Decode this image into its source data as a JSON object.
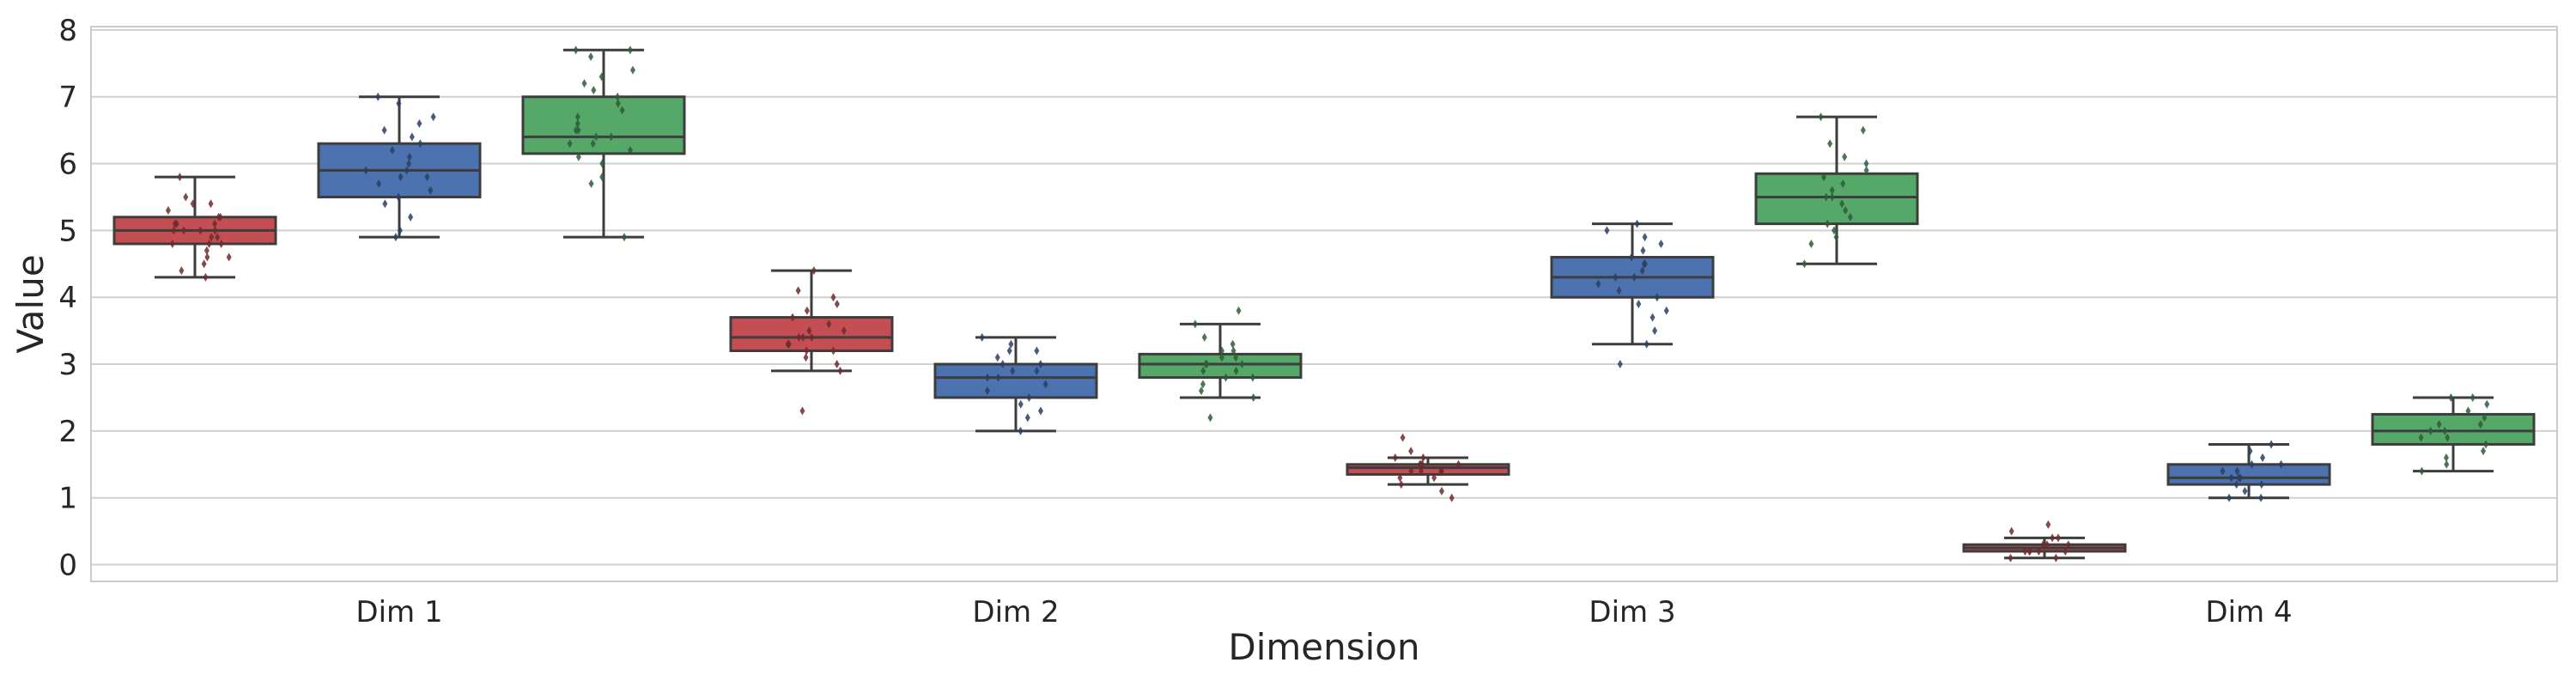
{
  "chart_data": {
    "type": "box",
    "xlabel": "Dimension",
    "ylabel": "Value",
    "categories": [
      "Dim 1",
      "Dim 2",
      "Dim 3",
      "Dim 4"
    ],
    "ylim": [
      -0.25,
      8.05
    ],
    "yticks": [
      "0",
      "1",
      "2",
      "3",
      "4",
      "5",
      "6",
      "7",
      "8"
    ],
    "grid": true,
    "colors": [
      "#c44e52",
      "#4c72b0",
      "#55a868"
    ],
    "series": [
      {
        "color": "#c44e52",
        "boxes": [
          {
            "whisker_low": 4.3,
            "q1": 4.8,
            "median": 5.0,
            "q3": 5.2,
            "whisker_high": 5.8,
            "points": [
              4.3,
              4.4,
              4.5,
              4.6,
              4.6,
              4.7,
              4.8,
              4.8,
              4.8,
              4.9,
              4.9,
              5.0,
              5.0,
              5.0,
              5.0,
              5.1,
              5.1,
              5.1,
              5.2,
              5.2,
              5.3,
              5.4,
              5.4,
              5.5,
              5.8
            ]
          },
          {
            "whisker_low": 2.9,
            "q1": 3.2,
            "median": 3.4,
            "q3": 3.7,
            "whisker_high": 4.4,
            "points": [
              2.3,
              2.9,
              3.0,
              3.1,
              3.2,
              3.2,
              3.3,
              3.3,
              3.4,
              3.4,
              3.4,
              3.5,
              3.5,
              3.6,
              3.7,
              3.8,
              3.9,
              4.0,
              4.1,
              4.4
            ]
          },
          {
            "whisker_low": 1.2,
            "q1": 1.35,
            "median": 1.45,
            "q3": 1.5,
            "whisker_high": 1.6,
            "points": [
              1.0,
              1.1,
              1.2,
              1.3,
              1.3,
              1.4,
              1.4,
              1.4,
              1.4,
              1.5,
              1.5,
              1.5,
              1.5,
              1.6,
              1.6,
              1.7,
              1.9
            ]
          },
          {
            "whisker_low": 0.1,
            "q1": 0.2,
            "median": 0.25,
            "q3": 0.3,
            "whisker_high": 0.4,
            "points": [
              0.1,
              0.1,
              0.2,
              0.2,
              0.2,
              0.2,
              0.2,
              0.3,
              0.3,
              0.3,
              0.4,
              0.4,
              0.5,
              0.6
            ]
          }
        ]
      },
      {
        "color": "#4c72b0",
        "boxes": [
          {
            "whisker_low": 4.9,
            "q1": 5.5,
            "median": 5.9,
            "q3": 6.3,
            "whisker_high": 7.0,
            "points": [
              4.9,
              5.0,
              5.2,
              5.4,
              5.5,
              5.6,
              5.7,
              5.8,
              5.8,
              5.9,
              5.9,
              6.0,
              6.1,
              6.2,
              6.3,
              6.4,
              6.5,
              6.6,
              6.7,
              6.9,
              7.0
            ]
          },
          {
            "whisker_low": 2.0,
            "q1": 2.5,
            "median": 2.8,
            "q3": 3.0,
            "whisker_high": 3.4,
            "points": [
              2.0,
              2.2,
              2.3,
              2.4,
              2.5,
              2.6,
              2.7,
              2.8,
              2.8,
              2.9,
              2.9,
              3.0,
              3.0,
              3.1,
              3.2,
              3.2,
              3.3,
              3.4
            ]
          },
          {
            "whisker_low": 3.3,
            "q1": 4.0,
            "median": 4.3,
            "q3": 4.6,
            "whisker_high": 5.1,
            "points": [
              3.0,
              3.3,
              3.5,
              3.7,
              3.8,
              3.9,
              4.0,
              4.1,
              4.2,
              4.3,
              4.3,
              4.4,
              4.5,
              4.5,
              4.6,
              4.7,
              4.8,
              4.9,
              5.0,
              5.1
            ]
          },
          {
            "whisker_low": 1.0,
            "q1": 1.2,
            "median": 1.3,
            "q3": 1.5,
            "whisker_high": 1.8,
            "points": [
              1.0,
              1.0,
              1.1,
              1.2,
              1.2,
              1.3,
              1.3,
              1.3,
              1.4,
              1.4,
              1.5,
              1.5,
              1.6,
              1.7,
              1.8
            ]
          }
        ]
      },
      {
        "color": "#55a868",
        "boxes": [
          {
            "whisker_low": 4.9,
            "q1": 6.15,
            "median": 6.4,
            "q3": 7.0,
            "whisker_high": 7.7,
            "points": [
              4.9,
              5.7,
              5.8,
              6.0,
              6.1,
              6.2,
              6.3,
              6.3,
              6.4,
              6.4,
              6.5,
              6.5,
              6.6,
              6.7,
              6.8,
              6.9,
              7.0,
              7.1,
              7.2,
              7.3,
              7.4,
              7.6,
              7.7,
              7.7
            ]
          },
          {
            "whisker_low": 2.5,
            "q1": 2.8,
            "median": 3.0,
            "q3": 3.15,
            "whisker_high": 3.6,
            "points": [
              2.2,
              2.5,
              2.6,
              2.7,
              2.8,
              2.8,
              2.9,
              2.9,
              3.0,
              3.0,
              3.0,
              3.1,
              3.1,
              3.2,
              3.2,
              3.3,
              3.4,
              3.6,
              3.8
            ]
          },
          {
            "whisker_low": 4.5,
            "q1": 5.1,
            "median": 5.5,
            "q3": 5.85,
            "whisker_high": 6.7,
            "points": [
              4.5,
              4.8,
              4.9,
              5.0,
              5.1,
              5.2,
              5.3,
              5.4,
              5.5,
              5.5,
              5.6,
              5.7,
              5.8,
              5.9,
              6.0,
              6.1,
              6.3,
              6.5,
              6.7
            ]
          },
          {
            "whisker_low": 1.4,
            "q1": 1.8,
            "median": 2.0,
            "q3": 2.25,
            "whisker_high": 2.5,
            "points": [
              1.4,
              1.5,
              1.6,
              1.7,
              1.8,
              1.9,
              1.9,
              2.0,
              2.0,
              2.1,
              2.1,
              2.2,
              2.3,
              2.4,
              2.5,
              2.5
            ]
          }
        ]
      }
    ]
  }
}
